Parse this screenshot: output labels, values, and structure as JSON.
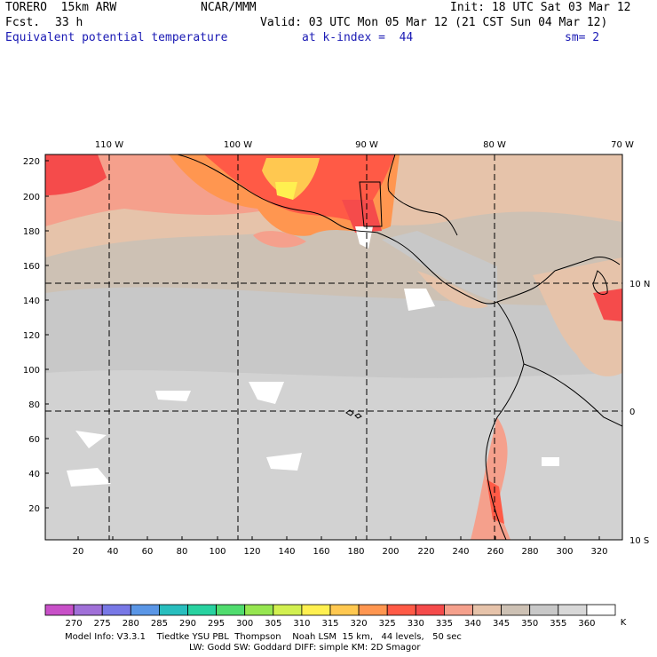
{
  "header": {
    "model": "TORERO  15km ARW",
    "center": "NCAR/MMM",
    "init": "Init: 18 UTC Sat 03 Mar 12",
    "fcst_label": "Fcst.",
    "fcst_value": "33 h",
    "valid": "Valid: 03 UTC Mon 05 Mar 12 (21 CST Sun 04 Mar 12)",
    "field": "Equivalent potential temperature",
    "level": "at k-index =  44",
    "smoothing": "sm= 2"
  },
  "map": {
    "lon_labels": [
      "110 W",
      "100 W",
      "90 W",
      "80 W",
      "70 W"
    ],
    "lat_labels": [
      "10 N",
      "0",
      "10 S"
    ],
    "x_ticks": [
      "20",
      "40",
      "60",
      "80",
      "100",
      "120",
      "140",
      "160",
      "180",
      "200",
      "220",
      "240",
      "260",
      "280",
      "300",
      "320"
    ],
    "y_ticks": [
      "220",
      "200",
      "180",
      "160",
      "140",
      "120",
      "100",
      "80",
      "60",
      "40",
      "20"
    ]
  },
  "colorbar": {
    "unit": "K",
    "labels": [
      "270",
      "275",
      "280",
      "285",
      "290",
      "295",
      "300",
      "305",
      "310",
      "315",
      "320",
      "325",
      "330",
      "335",
      "340",
      "345",
      "350",
      "355",
      "360"
    ],
    "colors": [
      "#c850c8",
      "#a070d8",
      "#7878e6",
      "#5a96e6",
      "#28bebe",
      "#28d2a0",
      "#50dc6e",
      "#96e650",
      "#d2f050",
      "#fff050",
      "#ffc850",
      "#ff9650",
      "#ff5a46",
      "#f54b4b",
      "#f5a08c",
      "#e6c3aa",
      "#cdc1b4",
      "#c8c8c8",
      "#d8d8d8",
      "#ffffff"
    ]
  },
  "footer": {
    "line1": "Model Info: V3.3.1    Tiedtke YSU PBL  Thompson    Noah LSM  15 km,   44 levels,   50 sec",
    "line2": "LW: Godd SW: Goddard DIFF: simple KM: 2D Smagor"
  }
}
